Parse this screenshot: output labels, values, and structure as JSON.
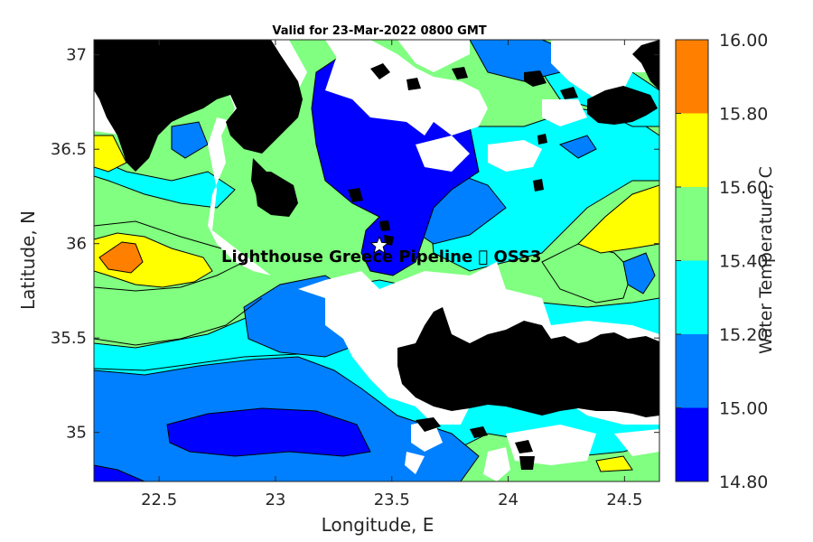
{
  "chart_data": {
    "type": "heatmap",
    "title": "Valid for 23-Mar-2022 0800 GMT",
    "xlabel": "Longitude, E",
    "ylabel": "Latitude, N",
    "xlim": [
      22.22,
      24.65
    ],
    "ylim": [
      34.74,
      37.08
    ],
    "x_ticks": [
      "22.5",
      "23",
      "23.5",
      "24",
      "24.5"
    ],
    "x_tick_values": [
      22.5,
      23.0,
      23.5,
      24.0,
      24.5
    ],
    "y_ticks": [
      "37",
      "36.5",
      "36",
      "35.5",
      "35"
    ],
    "y_tick_values": [
      37.0,
      36.5,
      36.0,
      35.5,
      35.0
    ],
    "colorbar": {
      "label": "Water Temperature, C",
      "levels": [
        "16.00",
        "15.80",
        "15.60",
        "15.40",
        "15.20",
        "15.00",
        "14.80"
      ],
      "colors": [
        "#ff8000",
        "#ffff00",
        "#80ff80",
        "#00ffff",
        "#0080ff",
        "#0000ff"
      ]
    },
    "annotation": {
      "text": "Lighthouse Greece Pipeline \u0000 OSS3",
      "lon": 23.45,
      "lat": 36.0
    },
    "background_color": "#80ff80",
    "land_color": "#000000",
    "grid": false
  }
}
